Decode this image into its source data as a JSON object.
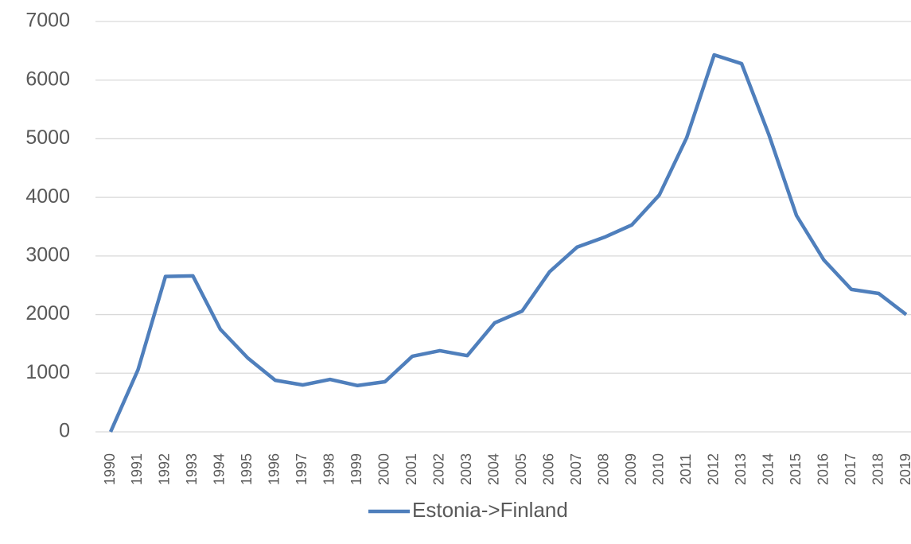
{
  "chart_data": {
    "type": "line",
    "categories": [
      "1990",
      "1991",
      "1992",
      "1993",
      "1994",
      "1995",
      "1996",
      "1997",
      "1998",
      "1999",
      "2000",
      "2001",
      "2002",
      "2003",
      "2004",
      "2005",
      "2006",
      "2007",
      "2008",
      "2009",
      "2010",
      "2011",
      "2012",
      "2013",
      "2014",
      "2015",
      "2016",
      "2017",
      "2018",
      "2019"
    ],
    "series": [
      {
        "name": "Estonia->Finland",
        "color": "#4f7fbc",
        "values": [
          0,
          1060,
          2650,
          2660,
          1750,
          1260,
          880,
          800,
          895,
          790,
          855,
          1290,
          1385,
          1300,
          1860,
          2060,
          2730,
          3150,
          3320,
          3530,
          4040,
          5020,
          6430,
          6280,
          5060,
          3690,
          2930,
          2430,
          2360,
          2000
        ]
      }
    ],
    "ylim": [
      0,
      7000
    ],
    "yticks": [
      0,
      1000,
      2000,
      3000,
      4000,
      5000,
      6000,
      7000
    ],
    "grid": true,
    "legend": "bottom"
  }
}
